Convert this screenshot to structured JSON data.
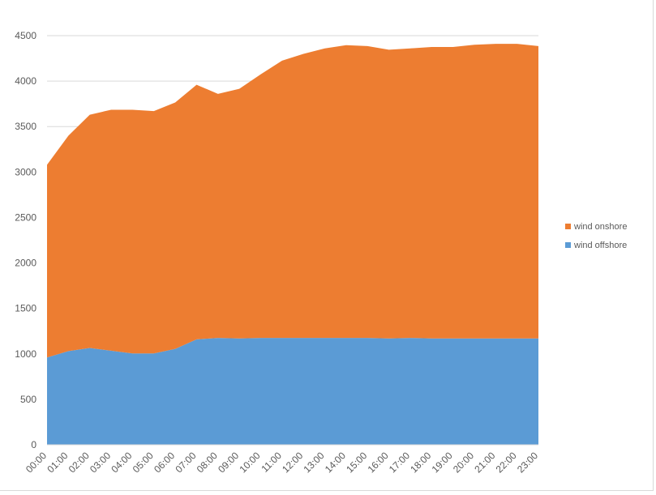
{
  "chart_data": {
    "type": "area",
    "stacked": true,
    "title": "",
    "xlabel": "",
    "ylabel": "",
    "ylim": [
      0,
      4500
    ],
    "yticks": [
      0,
      500,
      1000,
      1500,
      2000,
      2500,
      3000,
      3500,
      4000,
      4500
    ],
    "grid": "horizontal",
    "legend_position": "right",
    "categories": [
      "00:00",
      "01:00",
      "02:00",
      "03:00",
      "04:00",
      "05:00",
      "06:00",
      "07:00",
      "08:00",
      "09:00",
      "10:00",
      "11:00",
      "12:00",
      "13:00",
      "14:00",
      "15:00",
      "16:00",
      "17:00",
      "18:00",
      "19:00",
      "20:00",
      "21:00",
      "22:00",
      "23:00"
    ],
    "series": [
      {
        "name": "wind offshore",
        "color": "#5b9bd5",
        "values": [
          960,
          1030,
          1065,
          1035,
          1005,
          1005,
          1055,
          1160,
          1175,
          1170,
          1175,
          1175,
          1175,
          1175,
          1175,
          1175,
          1170,
          1175,
          1170,
          1170,
          1170,
          1170,
          1170,
          1170
        ]
      },
      {
        "name": "wind onshore",
        "color": "#ed7d31",
        "values": [
          2120,
          2370,
          2565,
          2650,
          2680,
          2665,
          2710,
          2800,
          2685,
          2745,
          2900,
          3050,
          3125,
          3185,
          3220,
          3210,
          3175,
          3185,
          3205,
          3205,
          3230,
          3240,
          3240,
          3215
        ]
      }
    ]
  }
}
